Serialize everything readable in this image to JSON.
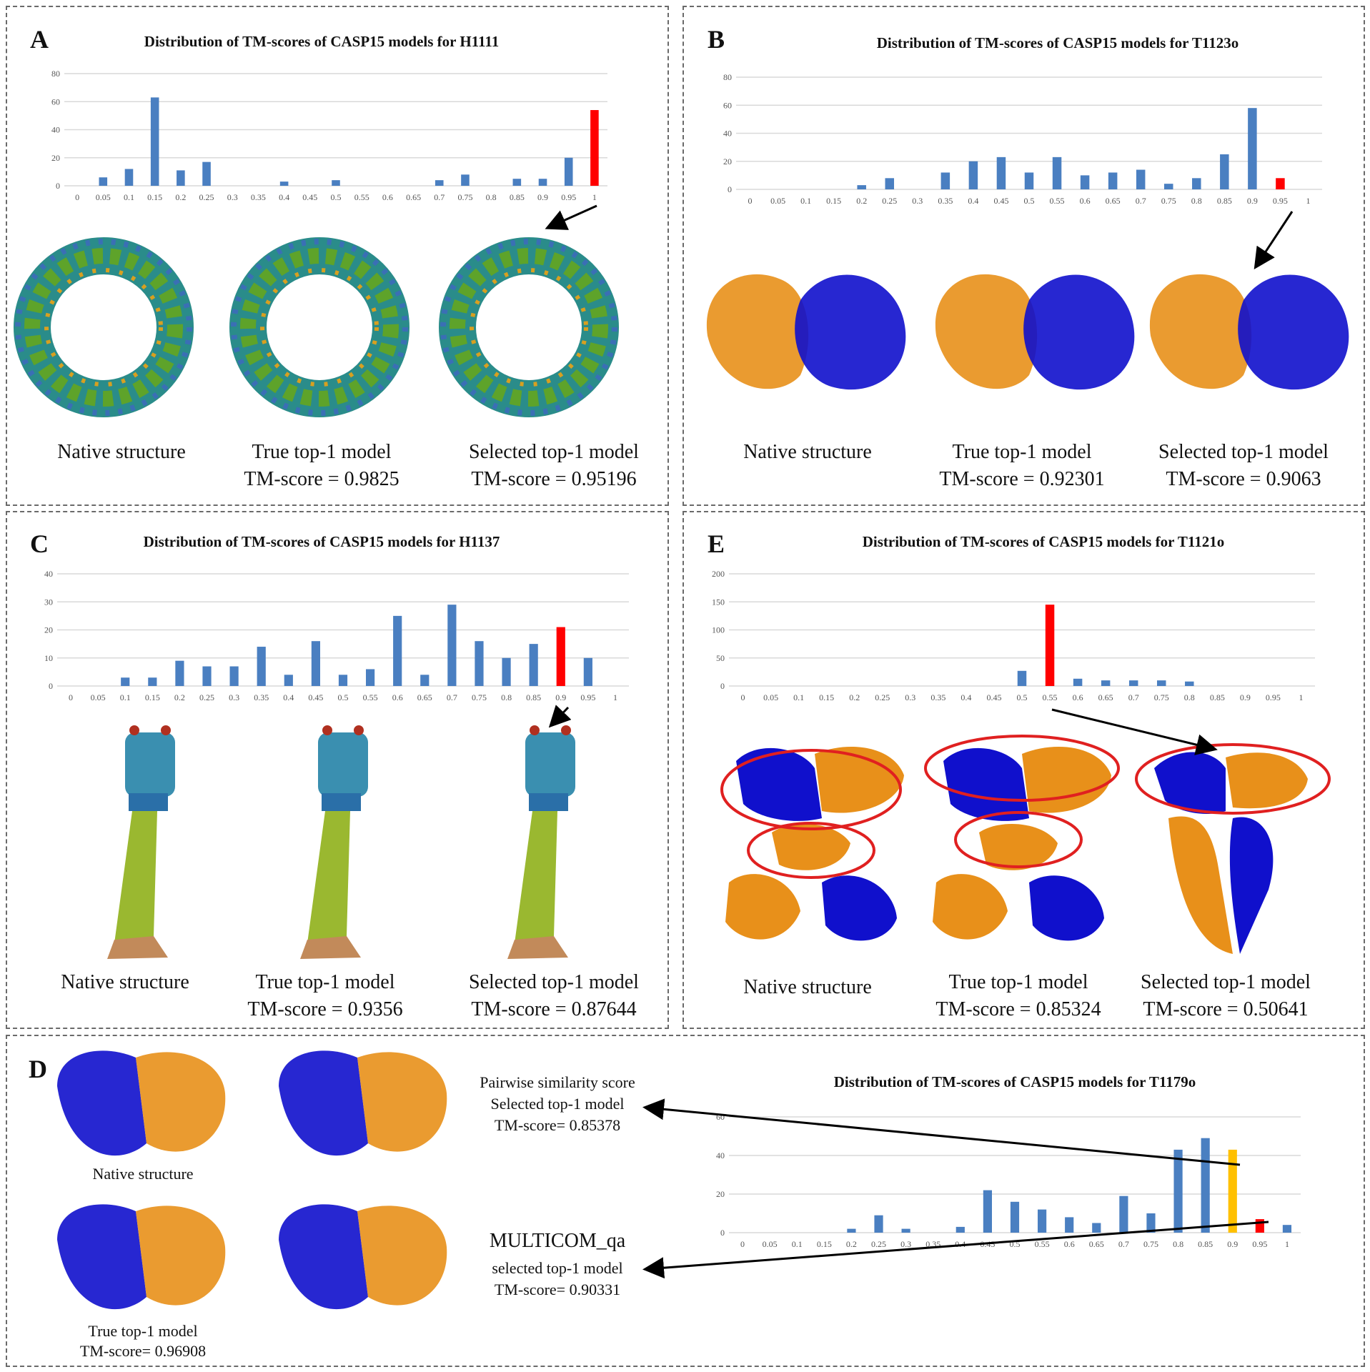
{
  "colors": {
    "bar": "#4a7fc1",
    "highlight": "#ff0000",
    "secondary": "#ffc000",
    "orange": "#e8901a",
    "blue": "#1010cc",
    "grid": "#d9d9d9"
  },
  "panels": {
    "A": {
      "label": "A",
      "title": "Distribution of TM-scores of CASP15 models for H1111",
      "captions": {
        "native": "Native structure",
        "true_title": "True top-1 model",
        "true_score": "TM-score = 0.9825",
        "sel_title": "Selected top-1 model",
        "sel_score": "TM-score = 0.95196"
      }
    },
    "B": {
      "label": "B",
      "title": "Distribution of TM-scores of CASP15 models for T1123o",
      "captions": {
        "native": "Native structure",
        "true_title": "True top-1 model",
        "true_score": "TM-score = 0.92301",
        "sel_title": "Selected top-1 model",
        "sel_score": "TM-score = 0.9063"
      }
    },
    "C": {
      "label": "C",
      "title": "Distribution of TM-scores of CASP15 models for H1137",
      "captions": {
        "native": "Native structure",
        "true_title": "True top-1 model",
        "true_score": "TM-score = 0.9356",
        "sel_title": "Selected top-1 model",
        "sel_score": "TM-score = 0.87644"
      }
    },
    "E": {
      "label": "E",
      "title": "Distribution of TM-scores of CASP15 models for T1121o",
      "captions": {
        "native": "Native structure",
        "true_title": "True top-1 model",
        "true_score": "TM-score = 0.85324",
        "sel_title": "Selected top-1 model",
        "sel_score": "TM-score = 0.50641"
      }
    },
    "D": {
      "label": "D",
      "title": "Distribution of TM-scores of CASP15 models for T1179o",
      "captions": {
        "native": "Native structure",
        "true_title": "True top-1 model",
        "true_score": "TM-score= 0.96908",
        "pairwise_1": "Pairwise similarity score",
        "pairwise_2": "Selected top-1 model",
        "pairwise_3": "TM-score= 0.85378",
        "mqa_1": "MULTICOM_qa",
        "mqa_2": "selected top-1 model",
        "mqa_3": "TM-score= 0.90331"
      }
    }
  },
  "chart_data": [
    {
      "id": "A",
      "type": "bar",
      "title": "Distribution of TM-scores of CASP15 models for H1111",
      "categories": [
        "0",
        "0.05",
        "0.1",
        "0.15",
        "0.2",
        "0.25",
        "0.3",
        "0.35",
        "0.4",
        "0.45",
        "0.5",
        "0.55",
        "0.6",
        "0.65",
        "0.7",
        "0.75",
        "0.8",
        "0.85",
        "0.9",
        "0.95",
        "1"
      ],
      "values": [
        0,
        6,
        12,
        63,
        11,
        17,
        0,
        0,
        3,
        0,
        4,
        0,
        0,
        0,
        4,
        8,
        0,
        5,
        5,
        20,
        54
      ],
      "highlight_index": 20,
      "ylim": [
        0,
        80
      ],
      "yticks": [
        0,
        20,
        40,
        60,
        80
      ]
    },
    {
      "id": "B",
      "type": "bar",
      "title": "Distribution of TM-scores of CASP15 models for T1123o",
      "categories": [
        "0",
        "0.05",
        "0.1",
        "0.15",
        "0.2",
        "0.25",
        "0.3",
        "0.35",
        "0.4",
        "0.45",
        "0.5",
        "0.55",
        "0.6",
        "0.65",
        "0.7",
        "0.75",
        "0.8",
        "0.85",
        "0.9",
        "0.95",
        "1"
      ],
      "values": [
        0,
        0,
        0,
        0,
        3,
        8,
        0,
        12,
        20,
        23,
        12,
        23,
        10,
        12,
        14,
        4,
        8,
        25,
        58,
        8,
        0
      ],
      "highlight_index": 19,
      "ylim": [
        0,
        80
      ],
      "yticks": [
        0,
        20,
        40,
        60,
        80
      ]
    },
    {
      "id": "C",
      "type": "bar",
      "title": "Distribution of TM-scores of CASP15 models for H1137",
      "categories": [
        "0",
        "0.05",
        "0.1",
        "0.15",
        "0.2",
        "0.25",
        "0.3",
        "0.35",
        "0.4",
        "0.45",
        "0.5",
        "0.55",
        "0.6",
        "0.65",
        "0.7",
        "0.75",
        "0.8",
        "0.85",
        "0.9",
        "0.95",
        "1"
      ],
      "values": [
        0,
        0,
        3,
        3,
        9,
        7,
        7,
        14,
        4,
        16,
        4,
        6,
        25,
        4,
        29,
        16,
        10,
        15,
        21,
        10,
        0
      ],
      "highlight_index": 18,
      "ylim": [
        0,
        40
      ],
      "yticks": [
        0,
        10,
        20,
        30,
        40
      ]
    },
    {
      "id": "E",
      "type": "bar",
      "title": "Distribution of TM-scores of CASP15 models for T1121o",
      "categories": [
        "0",
        "0.05",
        "0.1",
        "0.15",
        "0.2",
        "0.25",
        "0.3",
        "0.35",
        "0.4",
        "0.45",
        "0.5",
        "0.55",
        "0.6",
        "0.65",
        "0.7",
        "0.75",
        "0.8",
        "0.85",
        "0.9",
        "0.95",
        "1"
      ],
      "values": [
        0,
        0,
        0,
        0,
        0,
        0,
        0,
        0,
        0,
        0,
        27,
        145,
        13,
        10,
        10,
        10,
        8,
        0,
        0,
        0,
        0
      ],
      "highlight_index": 11,
      "ylim": [
        0,
        200
      ],
      "yticks": [
        0,
        50,
        100,
        150,
        200
      ]
    },
    {
      "id": "D",
      "type": "bar",
      "title": "Distribution of TM-scores of CASP15 models for T1179o",
      "categories": [
        "0",
        "0.05",
        "0.1",
        "0.15",
        "0.2",
        "0.25",
        "0.3",
        "0.35",
        "0.4",
        "0.45",
        "0.5",
        "0.55",
        "0.6",
        "0.65",
        "0.7",
        "0.75",
        "0.8",
        "0.85",
        "0.9",
        "0.95",
        "1"
      ],
      "values": [
        0,
        0,
        0,
        0,
        2,
        9,
        2,
        0,
        3,
        22,
        16,
        12,
        8,
        5,
        19,
        10,
        43,
        49,
        43,
        7,
        4
      ],
      "highlight_index": 19,
      "secondary_index": 18,
      "ylim": [
        0,
        60
      ],
      "yticks": [
        0,
        20,
        40,
        60
      ]
    }
  ]
}
